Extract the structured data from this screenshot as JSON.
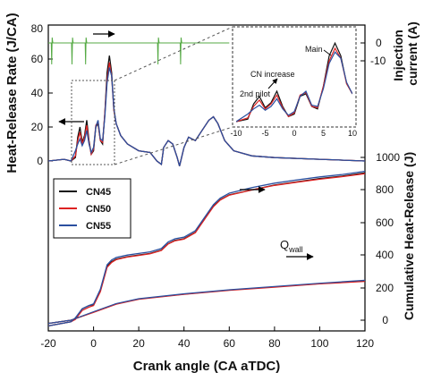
{
  "chart_data": {
    "type": "line",
    "x_axis": {
      "label": "Crank angle (CA aTDC)",
      "range": [
        -20,
        120
      ],
      "ticks": [
        "-20",
        "0",
        "20",
        "40",
        "60",
        "80",
        "100",
        "120"
      ]
    },
    "left_axis": {
      "label": "Heat-Release Rate (J/CA)",
      "range": [
        -2,
        80
      ],
      "ticks": [
        "0",
        "20",
        "40",
        "60",
        "80"
      ]
    },
    "right_top_axis": {
      "label": "Injection current (A)",
      "range": [
        -15,
        5
      ],
      "ticks": [
        "0",
        "-10"
      ]
    },
    "right_bottom_axis": {
      "label": "Cumulative Heat-Release (J)",
      "range": [
        -60,
        1000
      ],
      "ticks": [
        "0",
        "200",
        "400",
        "600",
        "800",
        "1000"
      ]
    },
    "legend": {
      "placement": "upper-left of lower panel",
      "items": [
        "CN45",
        "CN50",
        "CN55"
      ]
    },
    "colors": {
      "CN45": "#111111",
      "CN50": "#dd2222",
      "CN55": "#2a4f9f",
      "injection": "#55aa44"
    },
    "series": [
      {
        "name": "CN45",
        "hrr": [
          [
            -20,
            0
          ],
          [
            -13,
            1
          ],
          [
            -10,
            0
          ],
          [
            -8,
            2
          ],
          [
            -7,
            14
          ],
          [
            -6,
            20
          ],
          [
            -5,
            11
          ],
          [
            -4,
            15
          ],
          [
            -3,
            24
          ],
          [
            -2,
            12
          ],
          [
            -1,
            4
          ],
          [
            0,
            6
          ],
          [
            1,
            20
          ],
          [
            2,
            22
          ],
          [
            3,
            12
          ],
          [
            4,
            10
          ],
          [
            5,
            28
          ],
          [
            6,
            52
          ],
          [
            7,
            62
          ],
          [
            8,
            52
          ],
          [
            9,
            30
          ],
          [
            10,
            22
          ],
          [
            12,
            15
          ],
          [
            15,
            10
          ],
          [
            20,
            6
          ],
          [
            25,
            5
          ],
          [
            28,
            0
          ],
          [
            30,
            -2
          ],
          [
            31,
            8
          ],
          [
            33,
            12
          ],
          [
            35,
            10
          ],
          [
            37,
            2
          ],
          [
            38,
            -3
          ],
          [
            40,
            8
          ],
          [
            42,
            14
          ],
          [
            45,
            12
          ],
          [
            48,
            18
          ],
          [
            51,
            24
          ],
          [
            53,
            26
          ],
          [
            55,
            22
          ],
          [
            58,
            12
          ],
          [
            62,
            6
          ],
          [
            70,
            3
          ],
          [
            80,
            2
          ],
          [
            100,
            1
          ],
          [
            120,
            0
          ]
        ],
        "cum": [
          [
            -20,
            -35
          ],
          [
            -10,
            -10
          ],
          [
            -8,
            10
          ],
          [
            -5,
            70
          ],
          [
            -2,
            90
          ],
          [
            0,
            95
          ],
          [
            3,
            180
          ],
          [
            6,
            330
          ],
          [
            8,
            360
          ],
          [
            10,
            375
          ],
          [
            15,
            390
          ],
          [
            20,
            400
          ],
          [
            25,
            410
          ],
          [
            30,
            430
          ],
          [
            33,
            470
          ],
          [
            36,
            490
          ],
          [
            40,
            500
          ],
          [
            45,
            540
          ],
          [
            50,
            640
          ],
          [
            53,
            700
          ],
          [
            56,
            740
          ],
          [
            60,
            770
          ],
          [
            70,
            800
          ],
          [
            80,
            830
          ],
          [
            90,
            850
          ],
          [
            100,
            870
          ],
          [
            110,
            885
          ],
          [
            120,
            905
          ]
        ],
        "qwall": [
          [
            -20,
            -20
          ],
          [
            -10,
            0
          ],
          [
            0,
            50
          ],
          [
            10,
            100
          ],
          [
            20,
            130
          ],
          [
            40,
            160
          ],
          [
            60,
            185
          ],
          [
            80,
            205
          ],
          [
            100,
            225
          ],
          [
            120,
            240
          ]
        ]
      },
      {
        "name": "CN50",
        "hrr": [
          [
            -20,
            0
          ],
          [
            -13,
            1
          ],
          [
            -10,
            0
          ],
          [
            -8,
            3
          ],
          [
            -7,
            12
          ],
          [
            -6,
            17
          ],
          [
            -5,
            10
          ],
          [
            -4,
            14
          ],
          [
            -3,
            21
          ],
          [
            -2,
            11
          ],
          [
            -1,
            4
          ],
          [
            0,
            7
          ],
          [
            1,
            21
          ],
          [
            2,
            23
          ],
          [
            3,
            12
          ],
          [
            4,
            11
          ],
          [
            5,
            28
          ],
          [
            6,
            48
          ],
          [
            7,
            58
          ],
          [
            8,
            50
          ],
          [
            9,
            30
          ],
          [
            10,
            22
          ],
          [
            12,
            15
          ],
          [
            15,
            10
          ],
          [
            20,
            6
          ],
          [
            25,
            5
          ],
          [
            28,
            0
          ],
          [
            30,
            -2
          ],
          [
            31,
            8
          ],
          [
            33,
            12
          ],
          [
            35,
            10
          ],
          [
            37,
            2
          ],
          [
            38,
            -3
          ],
          [
            40,
            8
          ],
          [
            42,
            14
          ],
          [
            45,
            12
          ],
          [
            48,
            18
          ],
          [
            51,
            24
          ],
          [
            53,
            26
          ],
          [
            55,
            22
          ],
          [
            58,
            12
          ],
          [
            62,
            6
          ],
          [
            70,
            3
          ],
          [
            80,
            2
          ],
          [
            100,
            1
          ],
          [
            120,
            0
          ]
        ],
        "cum": [
          [
            -20,
            -35
          ],
          [
            -10,
            -10
          ],
          [
            -8,
            5
          ],
          [
            -5,
            60
          ],
          [
            -2,
            80
          ],
          [
            0,
            90
          ],
          [
            3,
            175
          ],
          [
            6,
            325
          ],
          [
            8,
            355
          ],
          [
            10,
            372
          ],
          [
            15,
            388
          ],
          [
            20,
            398
          ],
          [
            25,
            408
          ],
          [
            30,
            428
          ],
          [
            33,
            468
          ],
          [
            36,
            488
          ],
          [
            40,
            498
          ],
          [
            45,
            538
          ],
          [
            50,
            638
          ],
          [
            53,
            698
          ],
          [
            56,
            738
          ],
          [
            60,
            768
          ],
          [
            70,
            800
          ],
          [
            80,
            828
          ],
          [
            90,
            848
          ],
          [
            100,
            866
          ],
          [
            110,
            882
          ],
          [
            120,
            900
          ]
        ],
        "qwall": [
          [
            -20,
            -20
          ],
          [
            -10,
            0
          ],
          [
            0,
            48
          ],
          [
            10,
            98
          ],
          [
            20,
            128
          ],
          [
            40,
            158
          ],
          [
            60,
            183
          ],
          [
            80,
            203
          ],
          [
            100,
            223
          ],
          [
            120,
            238
          ]
        ]
      },
      {
        "name": "CN55",
        "hrr": [
          [
            -20,
            0
          ],
          [
            -13,
            1
          ],
          [
            -10,
            0
          ],
          [
            -8,
            6
          ],
          [
            -7,
            10
          ],
          [
            -6,
            13
          ],
          [
            -5,
            9
          ],
          [
            -4,
            12
          ],
          [
            -3,
            18
          ],
          [
            -2,
            10
          ],
          [
            -1,
            5
          ],
          [
            0,
            8
          ],
          [
            1,
            20
          ],
          [
            2,
            24
          ],
          [
            3,
            13
          ],
          [
            4,
            12
          ],
          [
            5,
            26
          ],
          [
            6,
            46
          ],
          [
            7,
            55
          ],
          [
            8,
            50
          ],
          [
            9,
            31
          ],
          [
            10,
            22
          ],
          [
            12,
            15
          ],
          [
            15,
            10
          ],
          [
            20,
            6
          ],
          [
            25,
            5
          ],
          [
            28,
            0
          ],
          [
            30,
            -2
          ],
          [
            31,
            8
          ],
          [
            33,
            12
          ],
          [
            35,
            10
          ],
          [
            37,
            2
          ],
          [
            38,
            -3
          ],
          [
            40,
            8
          ],
          [
            42,
            14
          ],
          [
            45,
            12
          ],
          [
            48,
            18
          ],
          [
            51,
            24
          ],
          [
            53,
            26
          ],
          [
            55,
            22
          ],
          [
            58,
            12
          ],
          [
            62,
            6
          ],
          [
            70,
            3
          ],
          [
            80,
            2
          ],
          [
            100,
            1
          ],
          [
            120,
            0
          ]
        ],
        "cum": [
          [
            -20,
            -35
          ],
          [
            -10,
            -10
          ],
          [
            -8,
            15
          ],
          [
            -5,
            70
          ],
          [
            -2,
            90
          ],
          [
            0,
            100
          ],
          [
            3,
            190
          ],
          [
            6,
            340
          ],
          [
            8,
            370
          ],
          [
            10,
            385
          ],
          [
            15,
            400
          ],
          [
            20,
            410
          ],
          [
            25,
            420
          ],
          [
            30,
            440
          ],
          [
            33,
            480
          ],
          [
            36,
            500
          ],
          [
            40,
            510
          ],
          [
            45,
            550
          ],
          [
            50,
            650
          ],
          [
            53,
            710
          ],
          [
            56,
            750
          ],
          [
            60,
            780
          ],
          [
            70,
            815
          ],
          [
            80,
            842
          ],
          [
            90,
            862
          ],
          [
            100,
            880
          ],
          [
            110,
            895
          ],
          [
            120,
            915
          ]
        ],
        "qwall": [
          [
            -20,
            -20
          ],
          [
            -10,
            0
          ],
          [
            0,
            52
          ],
          [
            10,
            102
          ],
          [
            20,
            132
          ],
          [
            40,
            162
          ],
          [
            60,
            187
          ],
          [
            80,
            207
          ],
          [
            100,
            227
          ],
          [
            120,
            245
          ]
        ]
      }
    ],
    "injection_current": [
      [
        -20,
        0
      ],
      [
        -18.7,
        0
      ],
      [
        -18.5,
        -12
      ],
      [
        -18.3,
        3
      ],
      [
        -18,
        0
      ],
      [
        -9.7,
        0
      ],
      [
        -9.5,
        -12
      ],
      [
        -9.3,
        3
      ],
      [
        -9,
        0
      ],
      [
        -3.7,
        0
      ],
      [
        -3.5,
        -12
      ],
      [
        -3.3,
        3
      ],
      [
        -3,
        0
      ],
      [
        28.3,
        0
      ],
      [
        28.5,
        -12
      ],
      [
        28.7,
        3
      ],
      [
        29,
        0
      ],
      [
        38.3,
        0
      ],
      [
        38.5,
        -12
      ],
      [
        38.7,
        3
      ],
      [
        39,
        0
      ],
      [
        60,
        0
      ]
    ],
    "inset": {
      "x_range": [
        -10,
        10
      ],
      "x_ticks": [
        "-10",
        "-5",
        "0",
        "5",
        "10"
      ],
      "annotations": [
        "Main",
        "CN increase",
        "2nd pilot"
      ]
    },
    "annotations": [
      "Q",
      "wall"
    ]
  }
}
